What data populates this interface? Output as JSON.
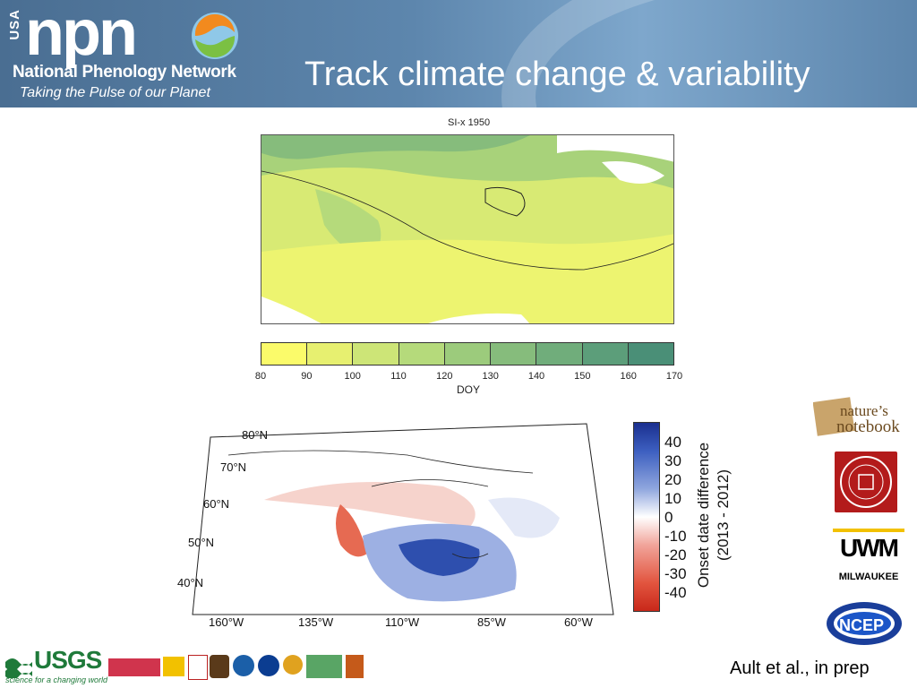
{
  "header": {
    "usa": "USA",
    "npn": "npn",
    "org_name": "National Phenology Network",
    "tagline": "Taking the Pulse of our Planet",
    "slide_title": "Track climate change & variability"
  },
  "figure_top": {
    "title": "SI-x 1950",
    "colorbar_ticks": [
      "80",
      "90",
      "100",
      "110",
      "120",
      "130",
      "140",
      "150",
      "160",
      "170"
    ],
    "colorbar_colors": [
      "#fbfb6a",
      "#e7f070",
      "#cde577",
      "#b5da7b",
      "#9ccb7c",
      "#86bc7c",
      "#70ad7b",
      "#5c9e7a",
      "#4a8f77"
    ],
    "colorbar_label": "DOY"
  },
  "figure_bottom": {
    "lat_labels": [
      "80°N",
      "70°N",
      "60°N",
      "50°N",
      "40°N"
    ],
    "lon_labels": [
      "160°W",
      "135°W",
      "110°W",
      "85°W",
      "60°W"
    ],
    "colorbar_ticks": [
      "40",
      "30",
      "20",
      "10",
      "0",
      "-10",
      "-20",
      "-30",
      "-40"
    ],
    "colorbar_label_line1": "Onset date difference",
    "colorbar_label_line2": "(2013 - 2012)"
  },
  "logos": {
    "natures_notebook": "nature's notebook",
    "uwm": "UWM",
    "uwm_sub": "MILWAUKEE",
    "ncep": "NCEP",
    "usgs": "USGS",
    "usgs_tag": "science for a changing world"
  },
  "citation": "Ault et al., in prep"
}
